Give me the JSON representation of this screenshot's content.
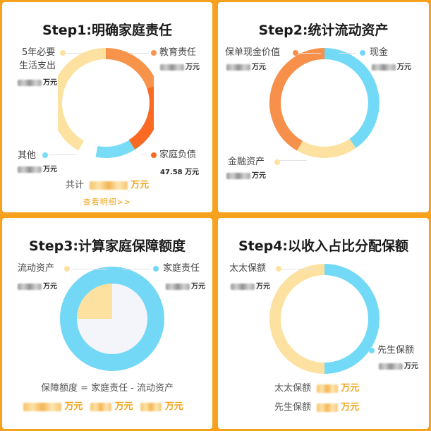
{
  "colors": {
    "orange_bg": "#f6a21e",
    "education": "#f7934a",
    "debt": "#fb6a23",
    "other": "#79dcf7",
    "living": "#fde1a0",
    "policy": "#f6904a",
    "cash": "#72d9f7",
    "finance": "#fde1a0",
    "accent_text": "#f2a51a"
  },
  "step1": {
    "title": "Step1:明确家庭责任",
    "living_label": "5年必要",
    "living_label2": "生活支出",
    "education_label": "教育责任",
    "debt_label": "家庭负债",
    "debt_value": "47.58",
    "other_label": "其他",
    "unit": "万元",
    "total_label": "共计",
    "total_unit": "万元",
    "detail_link": "查看明细>>"
  },
  "step2": {
    "title": "Step2:统计流动资产",
    "policy_label": "保单现金价值",
    "cash_label": "现金",
    "finance_label": "金融资产",
    "unit": "万元"
  },
  "step3": {
    "title": "Step3:计算家庭保障额度",
    "liquid_label": "流动资产",
    "duty_label": "家庭责任",
    "unit": "万元",
    "formula": "保障额度 = 家庭责任 - 流动资产",
    "u1": "万元",
    "u2": "万元",
    "u3": "万元"
  },
  "step4": {
    "title": "Step4:以收入占比分配保额",
    "wife_label": "太太保额",
    "husband_label": "先生保额",
    "unit": "万元",
    "wife_sum_label": "太太保额",
    "husband_sum_label": "先生保额",
    "sum_unit": "万元"
  }
}
